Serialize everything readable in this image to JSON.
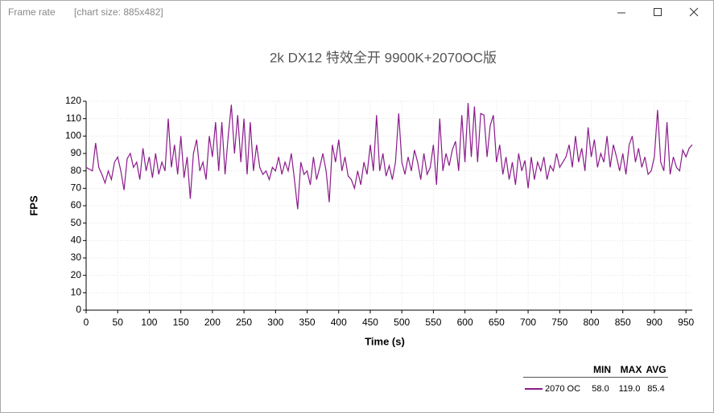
{
  "window": {
    "title": "Frame rate",
    "subtitle": "[chart size: 885x482]"
  },
  "chart_data": {
    "type": "line",
    "title": "2k DX12 特效全开 9900K+2070OC版",
    "x_label": "Time (s)",
    "y_label": "FPS",
    "xlim": [
      0,
      960
    ],
    "ylim": [
      0,
      120
    ],
    "xticks": [
      0,
      50,
      100,
      150,
      200,
      250,
      300,
      350,
      400,
      450,
      500,
      550,
      600,
      650,
      700,
      750,
      800,
      850,
      900,
      950
    ],
    "yticks": [
      0,
      10,
      20,
      30,
      40,
      50,
      60,
      70,
      80,
      90,
      100,
      110,
      120
    ],
    "grid": true,
    "x": [
      0,
      5,
      10,
      15,
      20,
      25,
      30,
      35,
      40,
      45,
      50,
      55,
      60,
      65,
      70,
      75,
      80,
      85,
      90,
      95,
      100,
      105,
      110,
      115,
      120,
      125,
      130,
      135,
      140,
      145,
      150,
      155,
      160,
      165,
      170,
      175,
      180,
      185,
      190,
      195,
      200,
      205,
      210,
      215,
      220,
      225,
      230,
      235,
      240,
      245,
      250,
      255,
      260,
      265,
      270,
      275,
      280,
      285,
      290,
      295,
      300,
      305,
      310,
      315,
      320,
      325,
      330,
      335,
      340,
      345,
      350,
      355,
      360,
      365,
      370,
      375,
      380,
      385,
      390,
      395,
      400,
      405,
      410,
      415,
      420,
      425,
      430,
      435,
      440,
      445,
      450,
      455,
      460,
      465,
      470,
      475,
      480,
      485,
      490,
      495,
      500,
      505,
      510,
      515,
      520,
      525,
      530,
      535,
      540,
      545,
      550,
      555,
      560,
      565,
      570,
      575,
      580,
      585,
      590,
      595,
      600,
      605,
      610,
      615,
      620,
      625,
      630,
      635,
      640,
      645,
      650,
      655,
      660,
      665,
      670,
      675,
      680,
      685,
      690,
      695,
      700,
      705,
      710,
      715,
      720,
      725,
      730,
      735,
      740,
      745,
      750,
      755,
      760,
      765,
      770,
      775,
      780,
      785,
      790,
      795,
      800,
      805,
      810,
      815,
      820,
      825,
      830,
      835,
      840,
      845,
      850,
      855,
      860,
      865,
      870,
      875,
      880,
      885,
      890,
      895,
      900,
      905,
      910,
      915,
      920,
      925,
      930,
      935,
      940,
      945,
      950,
      955,
      960
    ],
    "series": [
      {
        "name": "2070 OC",
        "color": "#8b1a8b",
        "values": [
          82,
          81,
          80,
          96,
          82,
          78,
          73,
          80,
          75,
          85,
          88,
          80,
          69,
          87,
          90,
          82,
          85,
          75,
          93,
          80,
          88,
          76,
          90,
          78,
          85,
          80,
          110,
          82,
          95,
          78,
          100,
          76,
          88,
          64,
          90,
          98,
          80,
          85,
          75,
          100,
          88,
          108,
          80,
          108,
          78,
          100,
          118,
          90,
          112,
          85,
          110,
          78,
          108,
          80,
          95,
          82,
          78,
          80,
          75,
          82,
          80,
          88,
          78,
          85,
          80,
          90,
          75,
          58,
          85,
          78,
          80,
          72,
          88,
          75,
          82,
          90,
          80,
          62,
          95,
          85,
          98,
          80,
          88,
          77,
          75,
          70,
          80,
          72,
          85,
          78,
          95,
          80,
          112,
          80,
          90,
          77,
          83,
          75,
          85,
          113,
          85,
          78,
          88,
          80,
          92,
          85,
          75,
          90,
          78,
          82,
          95,
          72,
          110,
          80,
          90,
          83,
          92,
          97,
          80,
          112,
          85,
          119,
          88,
          117,
          85,
          113,
          112,
          88,
          106,
          112,
          85,
          95,
          78,
          88,
          75,
          85,
          72,
          90,
          80,
          86,
          70,
          88,
          75,
          85,
          80,
          88,
          75,
          83,
          80,
          90,
          82,
          85,
          88,
          95,
          82,
          100,
          85,
          93,
          80,
          105,
          88,
          98,
          82,
          90,
          85,
          100,
          82,
          95,
          88,
          80,
          90,
          78,
          95,
          100,
          85,
          93,
          82,
          88,
          78,
          80,
          88,
          115,
          85,
          80,
          108,
          78,
          88,
          82,
          80,
          92,
          88,
          93,
          95
        ]
      }
    ],
    "stats": {
      "headers": [
        "MIN",
        "MAX",
        "AVG"
      ],
      "values": [
        "58.0",
        "119.0",
        "85.4"
      ]
    }
  }
}
